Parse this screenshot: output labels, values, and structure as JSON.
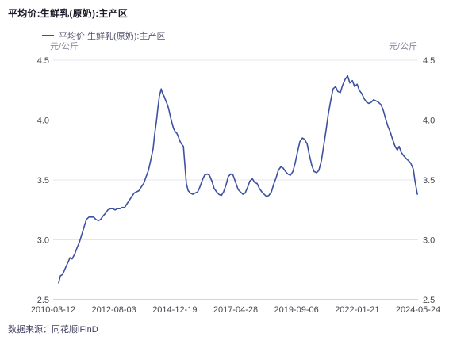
{
  "header": {
    "title": "平均价:生鲜乳(原奶):主产区",
    "legend_label": "平均价:生鲜乳(原奶):主产区",
    "unit_left": "元/公斤",
    "unit_right": "元/公斤"
  },
  "footer": {
    "source": "数据来源：同花顺iFinD"
  },
  "colors": {
    "series_line": "#3E51A1",
    "grid_line": "#e4e4ef",
    "axis_line": "#a8a9bc",
    "tick_label": "#45454f",
    "title_text": "#1c1c2b"
  },
  "chart_data": {
    "type": "line",
    "title": "平均价:生鲜乳(原奶):主产区",
    "ylabel": "元/公斤",
    "ylim": [
      2.5,
      4.5
    ],
    "y_ticks": [
      2.5,
      3.0,
      3.5,
      4.0,
      4.5
    ],
    "y_axis_sides": "both",
    "grid": "horizontal",
    "legend_position": "top-left",
    "x_tick_labels": [
      "2010-03-12",
      "2012-08-03",
      "2014-12-19",
      "2017-04-28",
      "2019-09-06",
      "2022-01-21",
      "2024-05-24"
    ],
    "series": [
      {
        "name": "平均价:生鲜乳(原奶):主产区",
        "color": "#3E51A1",
        "points": [
          [
            0.015,
            2.64
          ],
          [
            0.02,
            2.7
          ],
          [
            0.026,
            2.71
          ],
          [
            0.033,
            2.76
          ],
          [
            0.039,
            2.8
          ],
          [
            0.046,
            2.85
          ],
          [
            0.052,
            2.84
          ],
          [
            0.059,
            2.88
          ],
          [
            0.065,
            2.93
          ],
          [
            0.072,
            2.98
          ],
          [
            0.078,
            3.04
          ],
          [
            0.085,
            3.11
          ],
          [
            0.091,
            3.17
          ],
          [
            0.098,
            3.19
          ],
          [
            0.104,
            3.19
          ],
          [
            0.111,
            3.19
          ],
          [
            0.117,
            3.17
          ],
          [
            0.124,
            3.16
          ],
          [
            0.13,
            3.17
          ],
          [
            0.137,
            3.2
          ],
          [
            0.143,
            3.22
          ],
          [
            0.15,
            3.25
          ],
          [
            0.157,
            3.26
          ],
          [
            0.163,
            3.26
          ],
          [
            0.17,
            3.25
          ],
          [
            0.176,
            3.26
          ],
          [
            0.183,
            3.26
          ],
          [
            0.189,
            3.27
          ],
          [
            0.196,
            3.27
          ],
          [
            0.202,
            3.3
          ],
          [
            0.209,
            3.33
          ],
          [
            0.215,
            3.36
          ],
          [
            0.222,
            3.39
          ],
          [
            0.228,
            3.4
          ],
          [
            0.235,
            3.41
          ],
          [
            0.241,
            3.44
          ],
          [
            0.248,
            3.47
          ],
          [
            0.254,
            3.52
          ],
          [
            0.261,
            3.58
          ],
          [
            0.267,
            3.66
          ],
          [
            0.274,
            3.76
          ],
          [
            0.278,
            3.88
          ],
          [
            0.283,
            3.99
          ],
          [
            0.287,
            4.1
          ],
          [
            0.291,
            4.2
          ],
          [
            0.296,
            4.26
          ],
          [
            0.3,
            4.22
          ],
          [
            0.304,
            4.2
          ],
          [
            0.309,
            4.16
          ],
          [
            0.313,
            4.13
          ],
          [
            0.317,
            4.09
          ],
          [
            0.322,
            4.02
          ],
          [
            0.326,
            3.97
          ],
          [
            0.33,
            3.93
          ],
          [
            0.335,
            3.9
          ],
          [
            0.339,
            3.89
          ],
          [
            0.343,
            3.86
          ],
          [
            0.348,
            3.82
          ],
          [
            0.352,
            3.8
          ],
          [
            0.357,
            3.78
          ],
          [
            0.361,
            3.62
          ],
          [
            0.365,
            3.47
          ],
          [
            0.37,
            3.41
          ],
          [
            0.376,
            3.39
          ],
          [
            0.383,
            3.38
          ],
          [
            0.389,
            3.39
          ],
          [
            0.396,
            3.4
          ],
          [
            0.402,
            3.44
          ],
          [
            0.409,
            3.5
          ],
          [
            0.415,
            3.54
          ],
          [
            0.422,
            3.55
          ],
          [
            0.428,
            3.54
          ],
          [
            0.435,
            3.49
          ],
          [
            0.441,
            3.43
          ],
          [
            0.448,
            3.4
          ],
          [
            0.454,
            3.38
          ],
          [
            0.461,
            3.37
          ],
          [
            0.467,
            3.4
          ],
          [
            0.474,
            3.46
          ],
          [
            0.48,
            3.53
          ],
          [
            0.487,
            3.55
          ],
          [
            0.493,
            3.54
          ],
          [
            0.5,
            3.48
          ],
          [
            0.507,
            3.42
          ],
          [
            0.513,
            3.4
          ],
          [
            0.52,
            3.38
          ],
          [
            0.526,
            3.39
          ],
          [
            0.533,
            3.44
          ],
          [
            0.539,
            3.49
          ],
          [
            0.546,
            3.51
          ],
          [
            0.552,
            3.48
          ],
          [
            0.559,
            3.47
          ],
          [
            0.565,
            3.43
          ],
          [
            0.572,
            3.4
          ],
          [
            0.578,
            3.38
          ],
          [
            0.585,
            3.36
          ],
          [
            0.591,
            3.37
          ],
          [
            0.598,
            3.4
          ],
          [
            0.604,
            3.46
          ],
          [
            0.611,
            3.52
          ],
          [
            0.617,
            3.58
          ],
          [
            0.624,
            3.61
          ],
          [
            0.63,
            3.6
          ],
          [
            0.637,
            3.57
          ],
          [
            0.643,
            3.55
          ],
          [
            0.65,
            3.54
          ],
          [
            0.657,
            3.57
          ],
          [
            0.663,
            3.64
          ],
          [
            0.67,
            3.74
          ],
          [
            0.676,
            3.82
          ],
          [
            0.683,
            3.85
          ],
          [
            0.689,
            3.84
          ],
          [
            0.696,
            3.8
          ],
          [
            0.702,
            3.71
          ],
          [
            0.709,
            3.62
          ],
          [
            0.715,
            3.57
          ],
          [
            0.722,
            3.56
          ],
          [
            0.728,
            3.58
          ],
          [
            0.735,
            3.66
          ],
          [
            0.741,
            3.78
          ],
          [
            0.748,
            3.92
          ],
          [
            0.754,
            4.05
          ],
          [
            0.761,
            4.17
          ],
          [
            0.767,
            4.26
          ],
          [
            0.774,
            4.28
          ],
          [
            0.78,
            4.24
          ],
          [
            0.787,
            4.23
          ],
          [
            0.793,
            4.29
          ],
          [
            0.8,
            4.34
          ],
          [
            0.807,
            4.37
          ],
          [
            0.813,
            4.31
          ],
          [
            0.82,
            4.33
          ],
          [
            0.826,
            4.28
          ],
          [
            0.833,
            4.3
          ],
          [
            0.839,
            4.25
          ],
          [
            0.846,
            4.22
          ],
          [
            0.852,
            4.18
          ],
          [
            0.859,
            4.15
          ],
          [
            0.865,
            4.14
          ],
          [
            0.872,
            4.15
          ],
          [
            0.878,
            4.17
          ],
          [
            0.885,
            4.16
          ],
          [
            0.891,
            4.15
          ],
          [
            0.898,
            4.13
          ],
          [
            0.904,
            4.09
          ],
          [
            0.911,
            4.01
          ],
          [
            0.917,
            3.95
          ],
          [
            0.924,
            3.9
          ],
          [
            0.93,
            3.84
          ],
          [
            0.937,
            3.78
          ],
          [
            0.943,
            3.75
          ],
          [
            0.948,
            3.78
          ],
          [
            0.954,
            3.73
          ],
          [
            0.961,
            3.7
          ],
          [
            0.967,
            3.68
          ],
          [
            0.974,
            3.66
          ],
          [
            0.98,
            3.64
          ],
          [
            0.987,
            3.59
          ],
          [
            0.991,
            3.5
          ],
          [
            0.998,
            3.38
          ]
        ]
      }
    ]
  }
}
